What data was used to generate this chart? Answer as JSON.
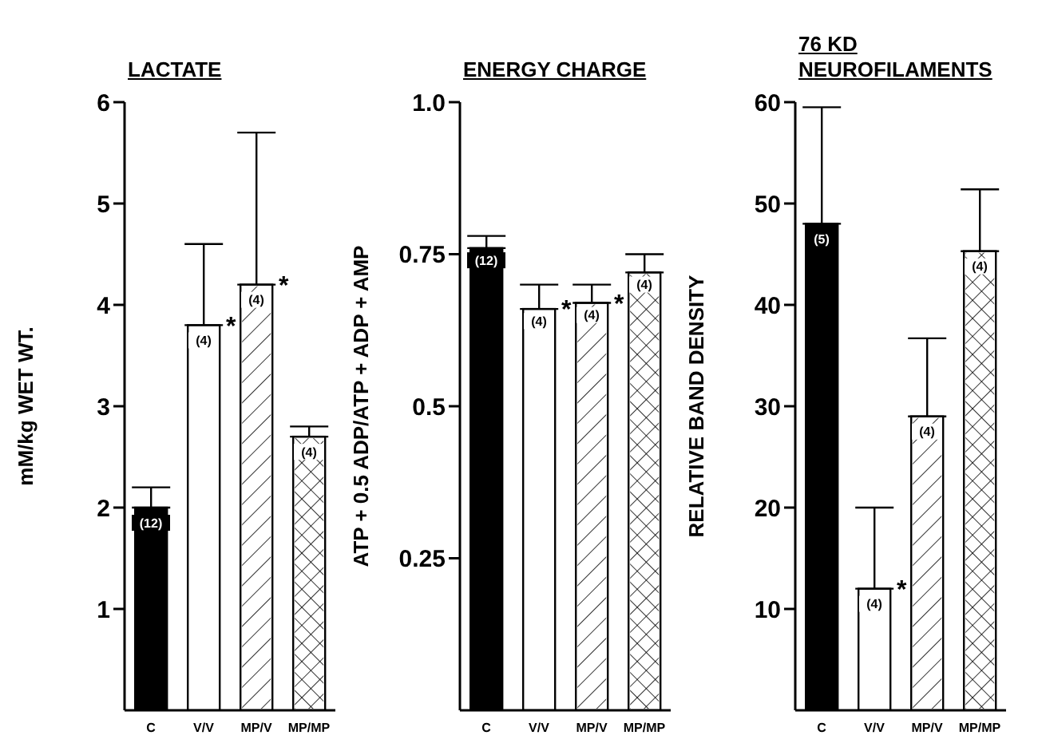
{
  "chart_data": [
    {
      "type": "bar",
      "title": "LACTATE",
      "ylabel": "mM/kg WET WT.",
      "categories": [
        "C",
        "V/V",
        "MP/V",
        "MP/MP"
      ],
      "values": [
        2.0,
        3.8,
        4.2,
        2.7
      ],
      "errors": [
        [
          2.0,
          2.2
        ],
        [
          3.8,
          4.6
        ],
        [
          4.2,
          5.7
        ],
        [
          2.7,
          2.8
        ]
      ],
      "colors": [
        "#000000",
        "#ffffff",
        "#ffffff",
        "#ffffff"
      ],
      "ylim": [
        0,
        6
      ],
      "yticks": [
        1,
        2,
        3,
        4,
        5,
        6
      ],
      "annotations": [
        {
          "text": "(12)",
          "x": "C",
          "y": 1.85
        },
        {
          "text": "(4)",
          "x": "V/V",
          "y": 3.65
        },
        {
          "text": "(4)",
          "x": "MP/V",
          "y": 4.05
        },
        {
          "text": "(4)",
          "x": "MP/MP",
          "y": 2.55
        },
        {
          "text": "*",
          "x": "V/V",
          "y": 3.8
        },
        {
          "text": "*",
          "x": "MP/V",
          "y": 4.2
        }
      ]
    },
    {
      "type": "bar",
      "title": "ENERGY CHARGE",
      "ylabel": "ATP + 0.5 ADP/ATP + ADP + AMP",
      "categories": [
        "C",
        "V/V",
        "MP/V",
        "MP/MP"
      ],
      "values": [
        0.76,
        0.66,
        0.67,
        0.72
      ],
      "errors": [
        [
          0.76,
          0.78
        ],
        [
          0.66,
          0.7
        ],
        [
          0.67,
          0.7
        ],
        [
          0.72,
          0.75
        ]
      ],
      "colors": [
        "#000000",
        "#ffffff",
        "#ffffff",
        "#ffffff"
      ],
      "ylim": [
        0,
        1
      ],
      "yticks": [
        0.25,
        0.5,
        0.75,
        {
          "value": 1,
          "label": "1.0"
        }
      ],
      "annotations": [
        {
          "text": "(12)",
          "x": "C",
          "y": 0.74
        },
        {
          "text": "(4)",
          "x": "V/V",
          "y": 0.64
        },
        {
          "text": "(4)",
          "x": "MP/V",
          "y": 0.65
        },
        {
          "text": "(4)",
          "x": "MP/MP",
          "y": 0.7
        },
        {
          "text": "*",
          "x": "V/V",
          "y": 0.66
        },
        {
          "text": "*",
          "x": "MP/V",
          "y": 0.67
        }
      ]
    },
    {
      "type": "bar",
      "title": "76 KD NEUROFILAMENTS",
      "ylabel": "RELATIVE BAND DENSITY",
      "categories": [
        "C",
        "V/V",
        "MP/V",
        "MP/MP"
      ],
      "values": [
        48,
        12,
        29,
        45.3
      ],
      "errors": [
        [
          48,
          59.5
        ],
        [
          12,
          20
        ],
        [
          29,
          36.7
        ],
        [
          45.3,
          51.4
        ]
      ],
      "colors": [
        "#000000",
        "#ffffff",
        "#ffffff",
        "#ffffff"
      ],
      "ylim": [
        0,
        60
      ],
      "yticks": [
        10,
        20,
        30,
        40,
        50,
        60
      ],
      "annotations": [
        {
          "text": "(5)",
          "x": "C",
          "y": 46.5
        },
        {
          "text": "(4)",
          "x": "V/V",
          "y": 10.5
        },
        {
          "text": "(4)",
          "x": "MP/V",
          "y": 27.5
        },
        {
          "text": "(4)",
          "x": "MP/MP",
          "y": 43.8
        },
        {
          "text": "*",
          "x": "V/V",
          "y": 12
        }
      ]
    }
  ]
}
